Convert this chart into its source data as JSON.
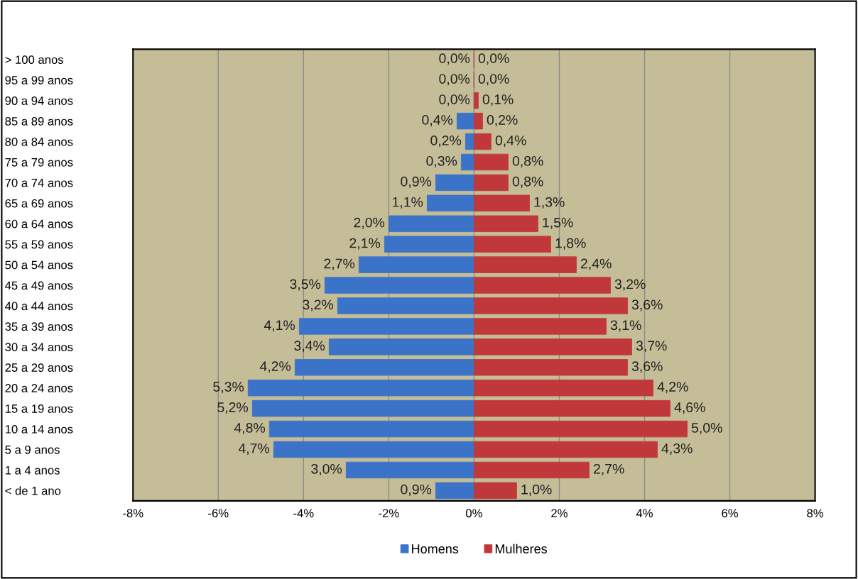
{
  "chart_data": {
    "type": "bar",
    "orientation": "horizontal",
    "categories": [
      "> 100 anos",
      "95 a 99 anos",
      "90 a 94 anos",
      "85 a 89 anos",
      "80 a 84 anos",
      "75 a 79 anos",
      "70 a 74 anos",
      "65 a 69 anos",
      "60 a 64 anos",
      "55 a 59 anos",
      "50 a 54 anos",
      "45 a 49 anos",
      "40 a 44 anos",
      "35 a 39 anos",
      "30 a 34 anos",
      "25 a 29 anos",
      "20 a 24 anos",
      "15 a 19 anos",
      "10 a 14 anos",
      "5 a 9 anos",
      "1 a 4 anos",
      "< de 1 ano"
    ],
    "series": [
      {
        "name": "Homens",
        "color": "#3b73c8",
        "values": [
          0.0,
          0.0,
          0.0,
          0.4,
          0.2,
          0.3,
          0.9,
          1.1,
          2.0,
          2.1,
          2.7,
          3.5,
          3.2,
          4.1,
          3.4,
          4.2,
          5.3,
          5.2,
          4.8,
          4.7,
          3.0,
          0.9
        ],
        "base": [
          0.0,
          0.0,
          0.0,
          -0.4,
          -0.2,
          -0.3,
          -0.9,
          -1.1,
          -2.0,
          -2.1,
          -2.7,
          -3.5,
          -3.2,
          -4.1,
          -3.4,
          -4.2,
          -5.3,
          -5.2,
          -4.8,
          -4.7,
          -3.0,
          -0.9
        ],
        "value_labels": [
          "0,0%",
          "0,0%",
          "0,0%",
          "0,4%",
          "0,2%",
          "0,3%",
          "0,9%",
          "1,1%",
          "2,0%",
          "2,1%",
          "2,7%",
          "3,5%",
          "3,2%",
          "4,1%",
          "3,4%",
          "4,2%",
          "5,3%",
          "5,2%",
          "4,8%",
          "4,7%",
          "3,0%",
          "0,9%"
        ]
      },
      {
        "name": "Mulheres",
        "color": "#c0383a",
        "values": [
          0.0,
          0.0,
          0.1,
          0.2,
          0.4,
          0.8,
          0.8,
          1.3,
          1.5,
          1.8,
          2.4,
          3.2,
          3.6,
          3.1,
          3.7,
          3.6,
          4.2,
          4.6,
          5.0,
          4.3,
          2.7,
          1.0
        ],
        "value_labels": [
          "0,0%",
          "0,0%",
          "0,1%",
          "0,2%",
          "0,4%",
          "0,8%",
          "0,8%",
          "1,3%",
          "1,5%",
          "1,8%",
          "2,4%",
          "3,2%",
          "3,6%",
          "3,1%",
          "3,7%",
          "3,6%",
          "4,2%",
          "4,6%",
          "5,0%",
          "4,3%",
          "2,7%",
          "1,0%"
        ]
      }
    ],
    "xlim": [
      -8,
      8
    ],
    "xticks": [
      {
        "value": -8,
        "label": "-8%"
      },
      {
        "value": -6,
        "label": "-6%"
      },
      {
        "value": -4,
        "label": "-4%"
      },
      {
        "value": -2,
        "label": "-2%"
      },
      {
        "value": 0,
        "label": "0%"
      },
      {
        "value": 2,
        "label": "2%"
      },
      {
        "value": 4,
        "label": "4%"
      },
      {
        "value": 6,
        "label": "6%"
      },
      {
        "value": 8,
        "label": "8%"
      }
    ],
    "grid": "x",
    "legend": "bottom"
  }
}
